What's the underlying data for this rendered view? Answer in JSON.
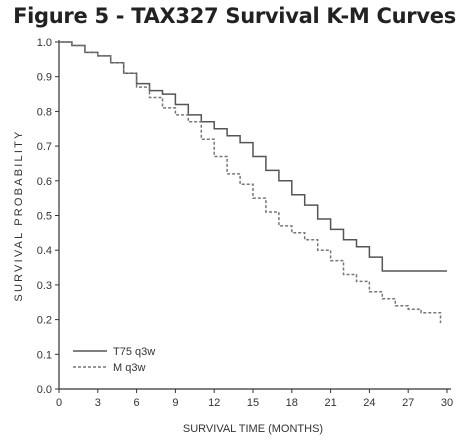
{
  "chart_data": {
    "type": "line",
    "title": "Figure 5 - TAX327 Survival K-M Curves",
    "xlabel": "SURVIVAL TIME (MONTHS)",
    "ylabel": "SURVIVAL PROBABILITY",
    "xlim": [
      0,
      30
    ],
    "ylim": [
      0,
      1.0
    ],
    "xticks": [
      "0",
      "3",
      "6",
      "9",
      "12",
      "15",
      "18",
      "21",
      "24",
      "27",
      "30"
    ],
    "yticks": [
      "0.0",
      "0.1",
      "0.2",
      "0.3",
      "0.4",
      "0.5",
      "0.6",
      "0.7",
      "0.8",
      "0.9",
      "1.0"
    ],
    "grid": false,
    "legend": "bottom-left",
    "series": [
      {
        "name": "T75 q3w",
        "style": "solid",
        "color": "#555555",
        "x": [
          0,
          1,
          2,
          3,
          4,
          5,
          6,
          7,
          8,
          9,
          10,
          11,
          12,
          13,
          14,
          15,
          16,
          17,
          18,
          19,
          20,
          21,
          22,
          23,
          24,
          25,
          26,
          27,
          28,
          29,
          30
        ],
        "y": [
          1.0,
          0.99,
          0.97,
          0.96,
          0.94,
          0.91,
          0.88,
          0.86,
          0.85,
          0.82,
          0.79,
          0.77,
          0.75,
          0.73,
          0.71,
          0.67,
          0.63,
          0.6,
          0.56,
          0.53,
          0.49,
          0.46,
          0.43,
          0.41,
          0.38,
          0.34,
          0.34,
          0.34,
          0.34,
          0.34,
          0.34
        ]
      },
      {
        "name": "M q3w",
        "style": "dashed",
        "color": "#777777",
        "x": [
          0,
          1,
          2,
          3,
          4,
          5,
          6,
          7,
          8,
          9,
          10,
          11,
          12,
          13,
          14,
          15,
          16,
          17,
          18,
          19,
          20,
          21,
          22,
          23,
          24,
          25,
          26,
          27,
          28,
          29,
          29.5
        ],
        "y": [
          1.0,
          0.99,
          0.97,
          0.96,
          0.94,
          0.91,
          0.87,
          0.84,
          0.81,
          0.79,
          0.77,
          0.72,
          0.67,
          0.62,
          0.59,
          0.55,
          0.51,
          0.47,
          0.45,
          0.43,
          0.4,
          0.37,
          0.33,
          0.31,
          0.28,
          0.26,
          0.24,
          0.23,
          0.22,
          0.22,
          0.19
        ]
      }
    ]
  }
}
